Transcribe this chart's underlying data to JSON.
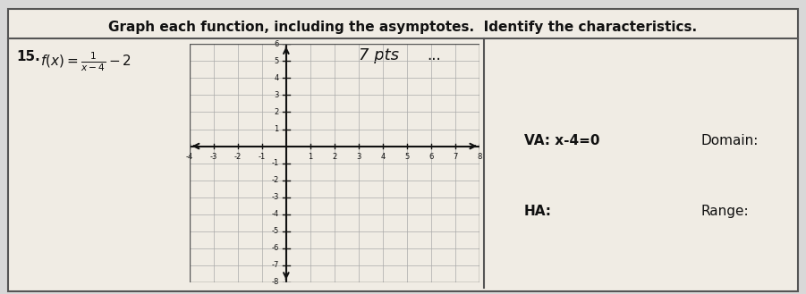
{
  "title": "Graph each function, including the asymptotes.  Identify the characteristics.",
  "problem_number": "15",
  "function_label": "f(x) = \\frac{1}{x-4} - 2",
  "points_label": "7 pts",
  "va_label": "VA: x-4=0",
  "ha_label": "HA:",
  "domain_label": "Domain:",
  "range_label": "Range:",
  "grid_xmin": -4,
  "grid_xmax": 8,
  "grid_ymin": -8,
  "grid_ymax": 6,
  "x_ticks": [
    -4,
    -3,
    -2,
    -1,
    1,
    2,
    3,
    4,
    5,
    6,
    7,
    8
  ],
  "y_ticks": [
    -8,
    -7,
    -6,
    -5,
    -4,
    -3,
    -2,
    -1,
    1,
    2,
    3,
    4,
    5,
    6
  ],
  "background_color": "#d8d8d8",
  "paper_color": "#f0ece4",
  "grid_color": "#aaaaaa",
  "axis_color": "#111111",
  "text_color": "#111111",
  "font_size_title": 11,
  "font_size_labels": 10,
  "font_size_problem": 11
}
